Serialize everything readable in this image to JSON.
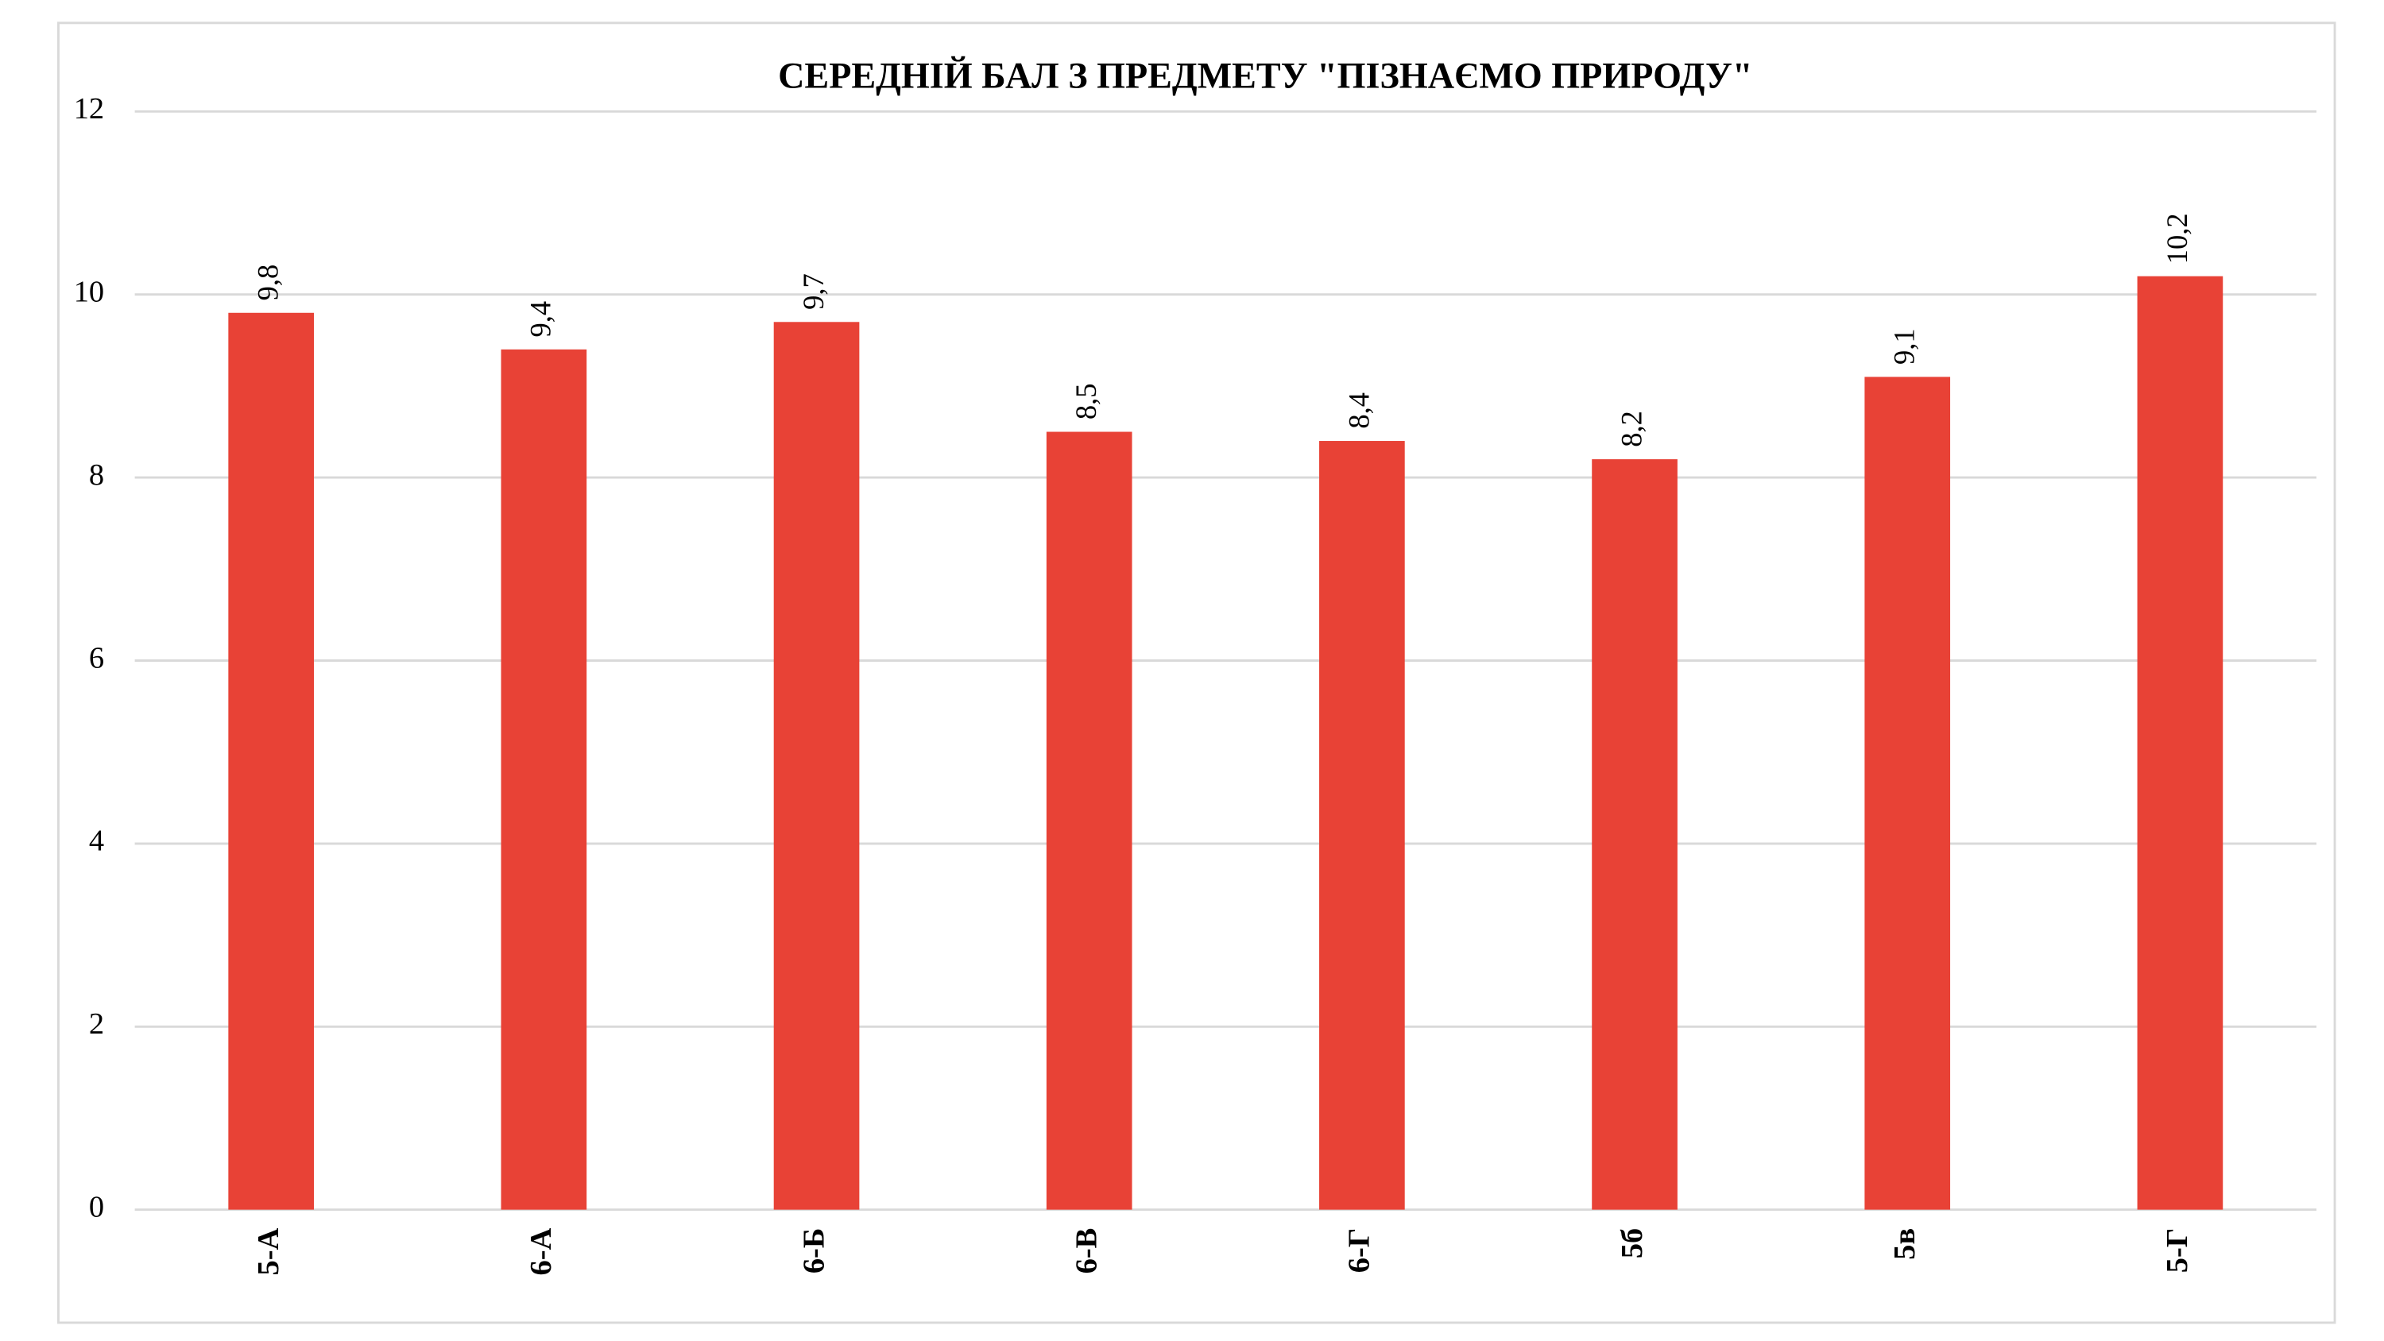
{
  "chart_data": {
    "type": "bar",
    "title": "СЕРЕДНІЙ БАЛ З ПРЕДМЕТУ \"ПІЗНАЄМО ПРИРОДУ\"",
    "categories": [
      "5-А",
      "6-А",
      "6-Б",
      "6-В",
      "6-Г",
      "5б",
      "5в",
      "5-Г"
    ],
    "values": [
      9.8,
      9.4,
      9.7,
      8.5,
      8.4,
      8.2,
      9.1,
      10.2
    ],
    "value_labels": [
      "9,8",
      "9,4",
      "9,7",
      "8,5",
      "8,4",
      "8,2",
      "9,1",
      "10,2"
    ],
    "color": "#e84236",
    "ylim": [
      0,
      12
    ],
    "yticks": [
      0,
      2,
      4,
      6,
      8,
      10,
      12
    ],
    "grid": true
  }
}
